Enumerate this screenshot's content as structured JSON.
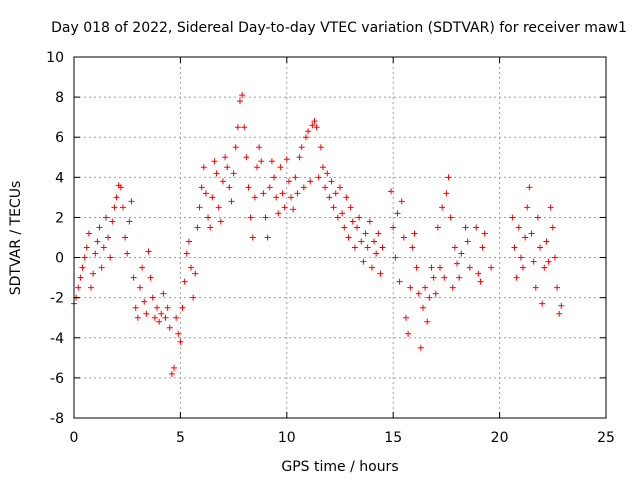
{
  "chart_data": {
    "type": "scatter",
    "title": "Day 018 of 2022, Sidereal Day-to-day VTEC variation (SDTVAR) for receiver maw1",
    "xlabel": "GPS time / hours",
    "ylabel": "SDTVAR / TECUs",
    "xlim": [
      0,
      25
    ],
    "ylim": [
      -8,
      10
    ],
    "xticks": [
      0,
      5,
      10,
      15,
      20,
      25
    ],
    "yticks": [
      -8,
      -6,
      -4,
      -2,
      0,
      2,
      4,
      6,
      8,
      10
    ],
    "grid": true,
    "marker": "+",
    "color": "#ff0000",
    "series": [
      {
        "name": "SDTVAR",
        "points": [
          [
            0.0,
            -2.3
          ],
          [
            0.1,
            -2.0
          ],
          [
            0.2,
            -1.5
          ],
          [
            0.3,
            -1.0
          ],
          [
            0.4,
            -0.5
          ],
          [
            0.5,
            0.0
          ],
          [
            0.6,
            0.5
          ],
          [
            0.7,
            1.2
          ],
          [
            0.8,
            -1.5
          ],
          [
            0.9,
            -0.8
          ],
          [
            1.0,
            0.2
          ],
          [
            1.1,
            0.8
          ],
          [
            1.2,
            1.5
          ],
          [
            1.3,
            -0.5
          ],
          [
            1.4,
            0.5
          ],
          [
            1.5,
            2.0
          ],
          [
            1.6,
            1.0
          ],
          [
            1.7,
            0.0
          ],
          [
            1.8,
            1.8
          ],
          [
            1.9,
            2.5
          ],
          [
            2.0,
            3.0
          ],
          [
            2.1,
            3.6
          ],
          [
            2.2,
            3.5
          ],
          [
            2.3,
            2.5
          ],
          [
            2.4,
            1.0
          ],
          [
            2.5,
            0.2
          ],
          [
            2.6,
            1.8
          ],
          [
            2.7,
            2.8
          ],
          [
            2.8,
            -1.0
          ],
          [
            2.9,
            -2.5
          ],
          [
            3.0,
            -3.0
          ],
          [
            3.1,
            -1.5
          ],
          [
            3.2,
            -0.5
          ],
          [
            3.3,
            -2.2
          ],
          [
            3.4,
            -2.8
          ],
          [
            3.5,
            0.3
          ],
          [
            3.6,
            -1.0
          ],
          [
            3.7,
            -2.0
          ],
          [
            3.8,
            -3.0
          ],
          [
            3.9,
            -2.5
          ],
          [
            4.0,
            -3.2
          ],
          [
            4.1,
            -2.8
          ],
          [
            4.2,
            -1.8
          ],
          [
            4.3,
            -3.0
          ],
          [
            4.4,
            -2.5
          ],
          [
            4.5,
            -3.5
          ],
          [
            4.6,
            -5.8
          ],
          [
            4.7,
            -5.5
          ],
          [
            4.8,
            -3.0
          ],
          [
            4.9,
            -3.8
          ],
          [
            5.0,
            -4.2
          ],
          [
            5.1,
            -2.5
          ],
          [
            5.2,
            -1.2
          ],
          [
            5.3,
            0.2
          ],
          [
            5.4,
            0.8
          ],
          [
            5.5,
            -0.5
          ],
          [
            5.6,
            -2.0
          ],
          [
            5.7,
            -0.8
          ],
          [
            5.8,
            1.5
          ],
          [
            5.9,
            2.5
          ],
          [
            6.0,
            3.5
          ],
          [
            6.1,
            4.5
          ],
          [
            6.2,
            3.2
          ],
          [
            6.3,
            2.0
          ],
          [
            6.4,
            1.5
          ],
          [
            6.5,
            3.0
          ],
          [
            6.6,
            4.8
          ],
          [
            6.7,
            4.2
          ],
          [
            6.8,
            2.5
          ],
          [
            6.9,
            1.8
          ],
          [
            7.0,
            3.8
          ],
          [
            7.1,
            5.0
          ],
          [
            7.2,
            4.5
          ],
          [
            7.3,
            3.5
          ],
          [
            7.4,
            2.8
          ],
          [
            7.5,
            4.2
          ],
          [
            7.6,
            5.5
          ],
          [
            7.7,
            6.5
          ],
          [
            7.8,
            7.8
          ],
          [
            7.9,
            8.1
          ],
          [
            8.0,
            6.5
          ],
          [
            8.1,
            5.0
          ],
          [
            8.2,
            3.5
          ],
          [
            8.3,
            2.0
          ],
          [
            8.4,
            1.0
          ],
          [
            8.5,
            3.0
          ],
          [
            8.6,
            4.5
          ],
          [
            8.7,
            5.5
          ],
          [
            8.8,
            4.8
          ],
          [
            8.9,
            3.2
          ],
          [
            9.0,
            2.0
          ],
          [
            9.1,
            1.0
          ],
          [
            9.2,
            3.5
          ],
          [
            9.3,
            4.8
          ],
          [
            9.4,
            4.0
          ],
          [
            9.5,
            3.0
          ],
          [
            9.6,
            2.2
          ],
          [
            9.7,
            4.5
          ],
          [
            9.8,
            3.2
          ],
          [
            9.9,
            2.5
          ],
          [
            10.0,
            4.9
          ],
          [
            10.1,
            3.8
          ],
          [
            10.2,
            3.0
          ],
          [
            10.3,
            2.4
          ],
          [
            10.4,
            4.0
          ],
          [
            10.5,
            3.2
          ],
          [
            10.6,
            5.0
          ],
          [
            10.7,
            5.5
          ],
          [
            10.8,
            3.5
          ],
          [
            10.9,
            6.0
          ],
          [
            11.0,
            6.3
          ],
          [
            11.1,
            3.8
          ],
          [
            11.2,
            6.6
          ],
          [
            11.3,
            6.8
          ],
          [
            11.4,
            6.5
          ],
          [
            11.5,
            4.0
          ],
          [
            11.6,
            5.5
          ],
          [
            11.7,
            4.5
          ],
          [
            11.8,
            3.5
          ],
          [
            11.9,
            4.2
          ],
          [
            12.0,
            3.0
          ],
          [
            12.1,
            3.8
          ],
          [
            12.2,
            2.5
          ],
          [
            12.3,
            3.2
          ],
          [
            12.4,
            2.0
          ],
          [
            12.5,
            3.5
          ],
          [
            12.6,
            2.2
          ],
          [
            12.7,
            1.5
          ],
          [
            12.8,
            3.0
          ],
          [
            12.9,
            1.0
          ],
          [
            13.0,
            2.5
          ],
          [
            13.1,
            1.8
          ],
          [
            13.2,
            0.5
          ],
          [
            13.3,
            1.5
          ],
          [
            13.4,
            2.0
          ],
          [
            13.5,
            0.8
          ],
          [
            13.6,
            -0.2
          ],
          [
            13.7,
            1.2
          ],
          [
            13.8,
            0.5
          ],
          [
            13.9,
            1.8
          ],
          [
            14.0,
            -0.5
          ],
          [
            14.1,
            0.8
          ],
          [
            14.2,
            0.2
          ],
          [
            14.3,
            1.2
          ],
          [
            14.4,
            -0.8
          ],
          [
            14.5,
            0.5
          ],
          [
            14.9,
            3.3
          ],
          [
            15.0,
            1.5
          ],
          [
            15.1,
            0.0
          ],
          [
            15.2,
            2.2
          ],
          [
            15.3,
            -1.2
          ],
          [
            15.4,
            2.8
          ],
          [
            15.5,
            1.0
          ],
          [
            15.6,
            -3.0
          ],
          [
            15.7,
            -3.8
          ],
          [
            15.8,
            -1.5
          ],
          [
            15.9,
            0.5
          ],
          [
            16.0,
            1.2
          ],
          [
            16.1,
            -0.5
          ],
          [
            16.2,
            -1.8
          ],
          [
            16.3,
            -4.5
          ],
          [
            16.4,
            -2.5
          ],
          [
            16.5,
            -1.5
          ],
          [
            16.6,
            -3.2
          ],
          [
            16.7,
            -2.0
          ],
          [
            16.8,
            -0.5
          ],
          [
            16.9,
            -1.0
          ],
          [
            17.0,
            -1.8
          ],
          [
            17.1,
            1.5
          ],
          [
            17.2,
            -0.5
          ],
          [
            17.3,
            2.5
          ],
          [
            17.4,
            -1.0
          ],
          [
            17.5,
            3.2
          ],
          [
            17.6,
            4.0
          ],
          [
            17.7,
            2.0
          ],
          [
            17.8,
            -1.5
          ],
          [
            17.9,
            0.5
          ],
          [
            18.0,
            -0.3
          ],
          [
            18.1,
            -1.0
          ],
          [
            18.2,
            0.2
          ],
          [
            18.4,
            1.5
          ],
          [
            18.5,
            0.8
          ],
          [
            18.6,
            -0.5
          ],
          [
            18.9,
            1.5
          ],
          [
            19.0,
            -0.8
          ],
          [
            19.1,
            -1.2
          ],
          [
            19.2,
            0.5
          ],
          [
            19.3,
            1.2
          ],
          [
            19.6,
            -0.5
          ],
          [
            20.6,
            2.0
          ],
          [
            20.7,
            0.5
          ],
          [
            20.8,
            -1.0
          ],
          [
            20.9,
            1.5
          ],
          [
            21.0,
            0.0
          ],
          [
            21.1,
            -0.5
          ],
          [
            21.2,
            1.0
          ],
          [
            21.3,
            2.5
          ],
          [
            21.4,
            3.5
          ],
          [
            21.5,
            1.2
          ],
          [
            21.6,
            -0.2
          ],
          [
            21.7,
            -1.5
          ],
          [
            21.8,
            2.0
          ],
          [
            21.9,
            0.5
          ],
          [
            22.0,
            -2.3
          ],
          [
            22.1,
            -0.5
          ],
          [
            22.2,
            0.8
          ],
          [
            22.3,
            -0.2
          ],
          [
            22.4,
            2.5
          ],
          [
            22.5,
            1.5
          ],
          [
            22.6,
            0.0
          ],
          [
            22.7,
            -1.5
          ],
          [
            22.8,
            -2.8
          ],
          [
            22.9,
            -2.4
          ]
        ]
      }
    ]
  }
}
